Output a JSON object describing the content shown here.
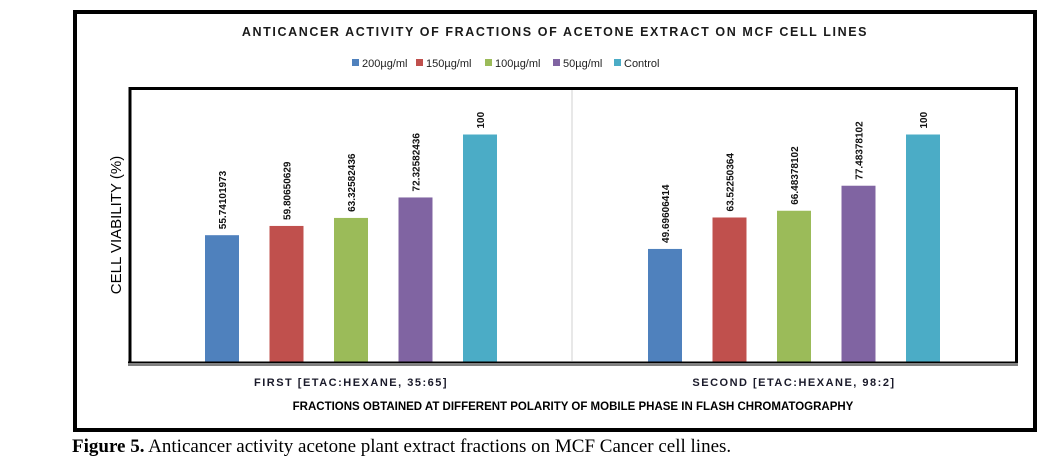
{
  "chart_data": {
    "type": "bar",
    "title": "ANTICANCER ACTIVITY OF FRACTIONS OF ACETONE EXTRACT ON MCF CELL LINES",
    "xlabel": "FRACTIONS OBTAINED AT DIFFERENT POLARITY OF MOBILE PHASE IN FLASH CHROMATOGRAPHY",
    "ylabel": "CELL VIABILITY (%)",
    "ylim": [
      0,
      120
    ],
    "grid": false,
    "legend_position": "top-center",
    "categories": [
      "FIRST [ETAC:HEXANE, 35:65]",
      "SECOND [ETAC:HEXANE, 98:2]"
    ],
    "series": [
      {
        "name": "200µg/ml",
        "color": "#4f81bd",
        "values": [
          55.74101973,
          49.69606414
        ],
        "labels": [
          "55.74101973",
          "49.69606414"
        ]
      },
      {
        "name": "150µg/ml",
        "color": "#c0504d",
        "values": [
          59.80650629,
          63.52250364
        ],
        "labels": [
          "59.80650629",
          "63.52250364"
        ]
      },
      {
        "name": "100µg/ml",
        "color": "#9bbb59",
        "values": [
          63.32582436,
          66.48378102
        ],
        "labels": [
          "63.32582436",
          "66.48378102"
        ]
      },
      {
        "name": "50µg/ml",
        "color": "#8064a2",
        "values": [
          72.32582436,
          77.48378102
        ],
        "labels": [
          "72.32582436",
          "77.48378102"
        ]
      },
      {
        "name": "Control",
        "color": "#4bacc6",
        "values": [
          100,
          100
        ],
        "labels": [
          "100",
          "100"
        ]
      }
    ]
  },
  "caption": {
    "label": "Figure 5.",
    "text": " Anticancer activity acetone plant extract fractions on MCF Cancer cell lines."
  }
}
